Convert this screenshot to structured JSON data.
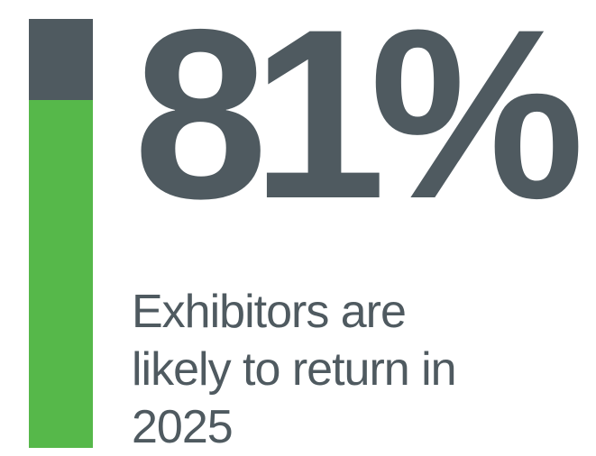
{
  "stat": {
    "value": "81%",
    "percent": 81
  },
  "caption": "Exhibitors are likely to return in 2025",
  "colors": {
    "dark": "#4f5a60",
    "accent": "#56b84a"
  }
}
